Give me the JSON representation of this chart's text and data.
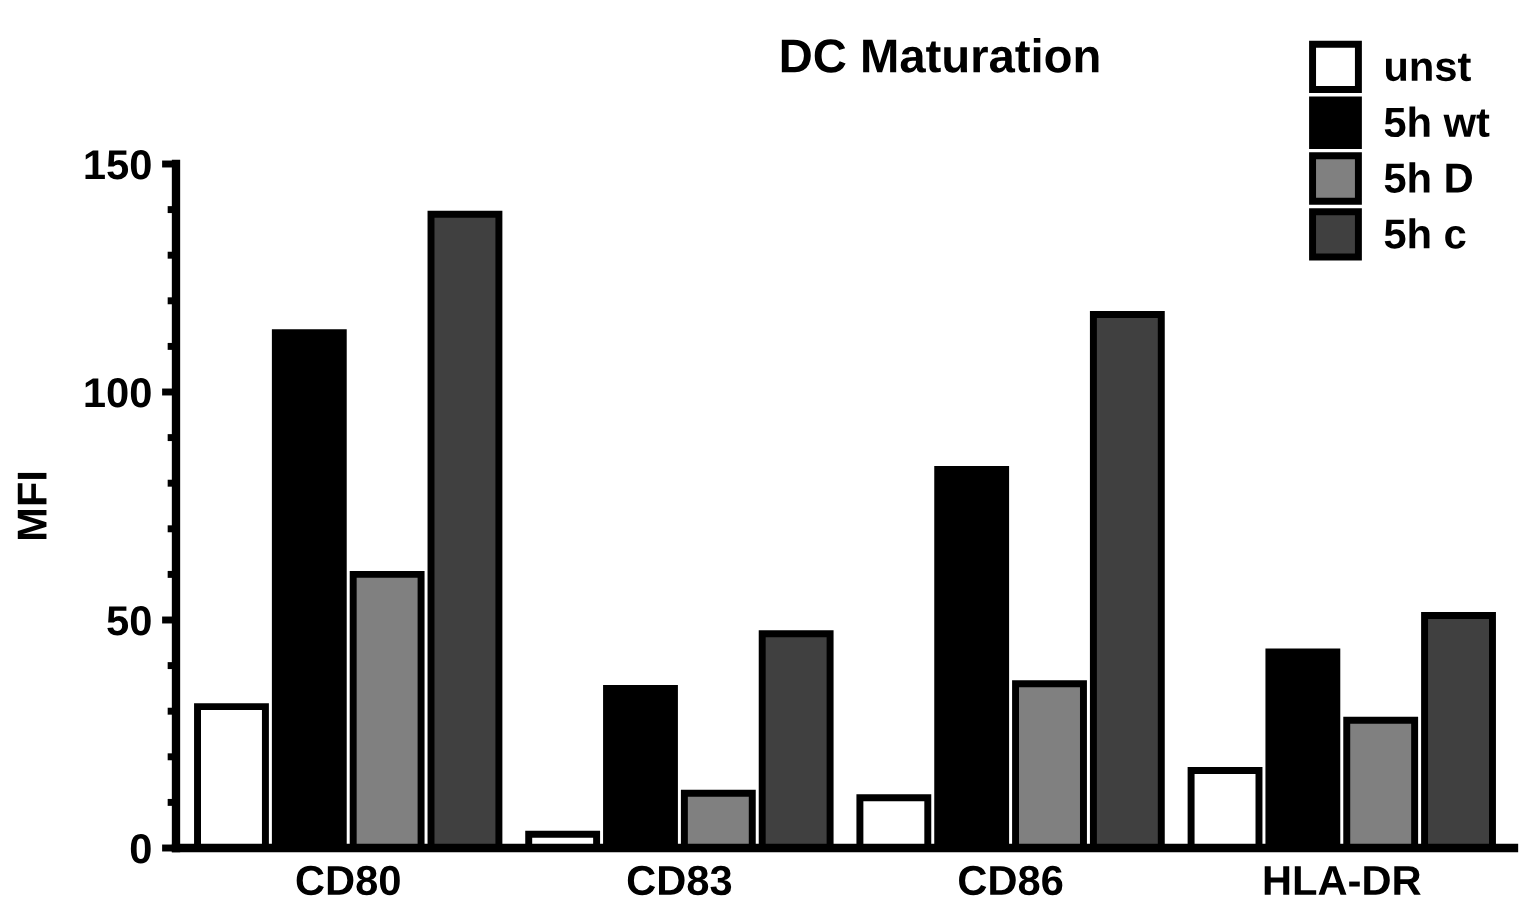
{
  "chart_data": {
    "type": "bar",
    "title": "DC Maturation",
    "ylabel": "MFI",
    "categories": [
      "CD80",
      "CD83",
      "CD86",
      "HLA-DR"
    ],
    "series": [
      {
        "name": "unst",
        "color": "#ffffff",
        "values": [
          31,
          3,
          11,
          17
        ]
      },
      {
        "name": "5h wt",
        "color": "#000000",
        "values": [
          113,
          35,
          83,
          43
        ]
      },
      {
        "name": "5h D",
        "color": "#808080",
        "values": [
          60,
          12,
          36,
          28
        ]
      },
      {
        "name": "5h c",
        "color": "#404040",
        "values": [
          139,
          47,
          117,
          51
        ]
      }
    ],
    "ylim": [
      0,
      150
    ],
    "yticks": [
      0,
      {
        "value": 10,
        "label": null
      },
      {
        "value": 20,
        "label": null
      },
      {
        "value": 30,
        "label": null
      },
      {
        "value": 40,
        "label": null
      },
      50,
      {
        "value": 60,
        "label": null
      },
      {
        "value": 70,
        "label": null
      },
      {
        "value": 80,
        "label": null
      },
      {
        "value": 90,
        "label": null
      },
      100,
      {
        "value": 110,
        "label": null
      },
      {
        "value": 120,
        "label": null
      },
      {
        "value": 130,
        "label": null
      },
      {
        "value": 140,
        "label": null
      },
      150
    ],
    "grid": false,
    "legend": "top right"
  }
}
